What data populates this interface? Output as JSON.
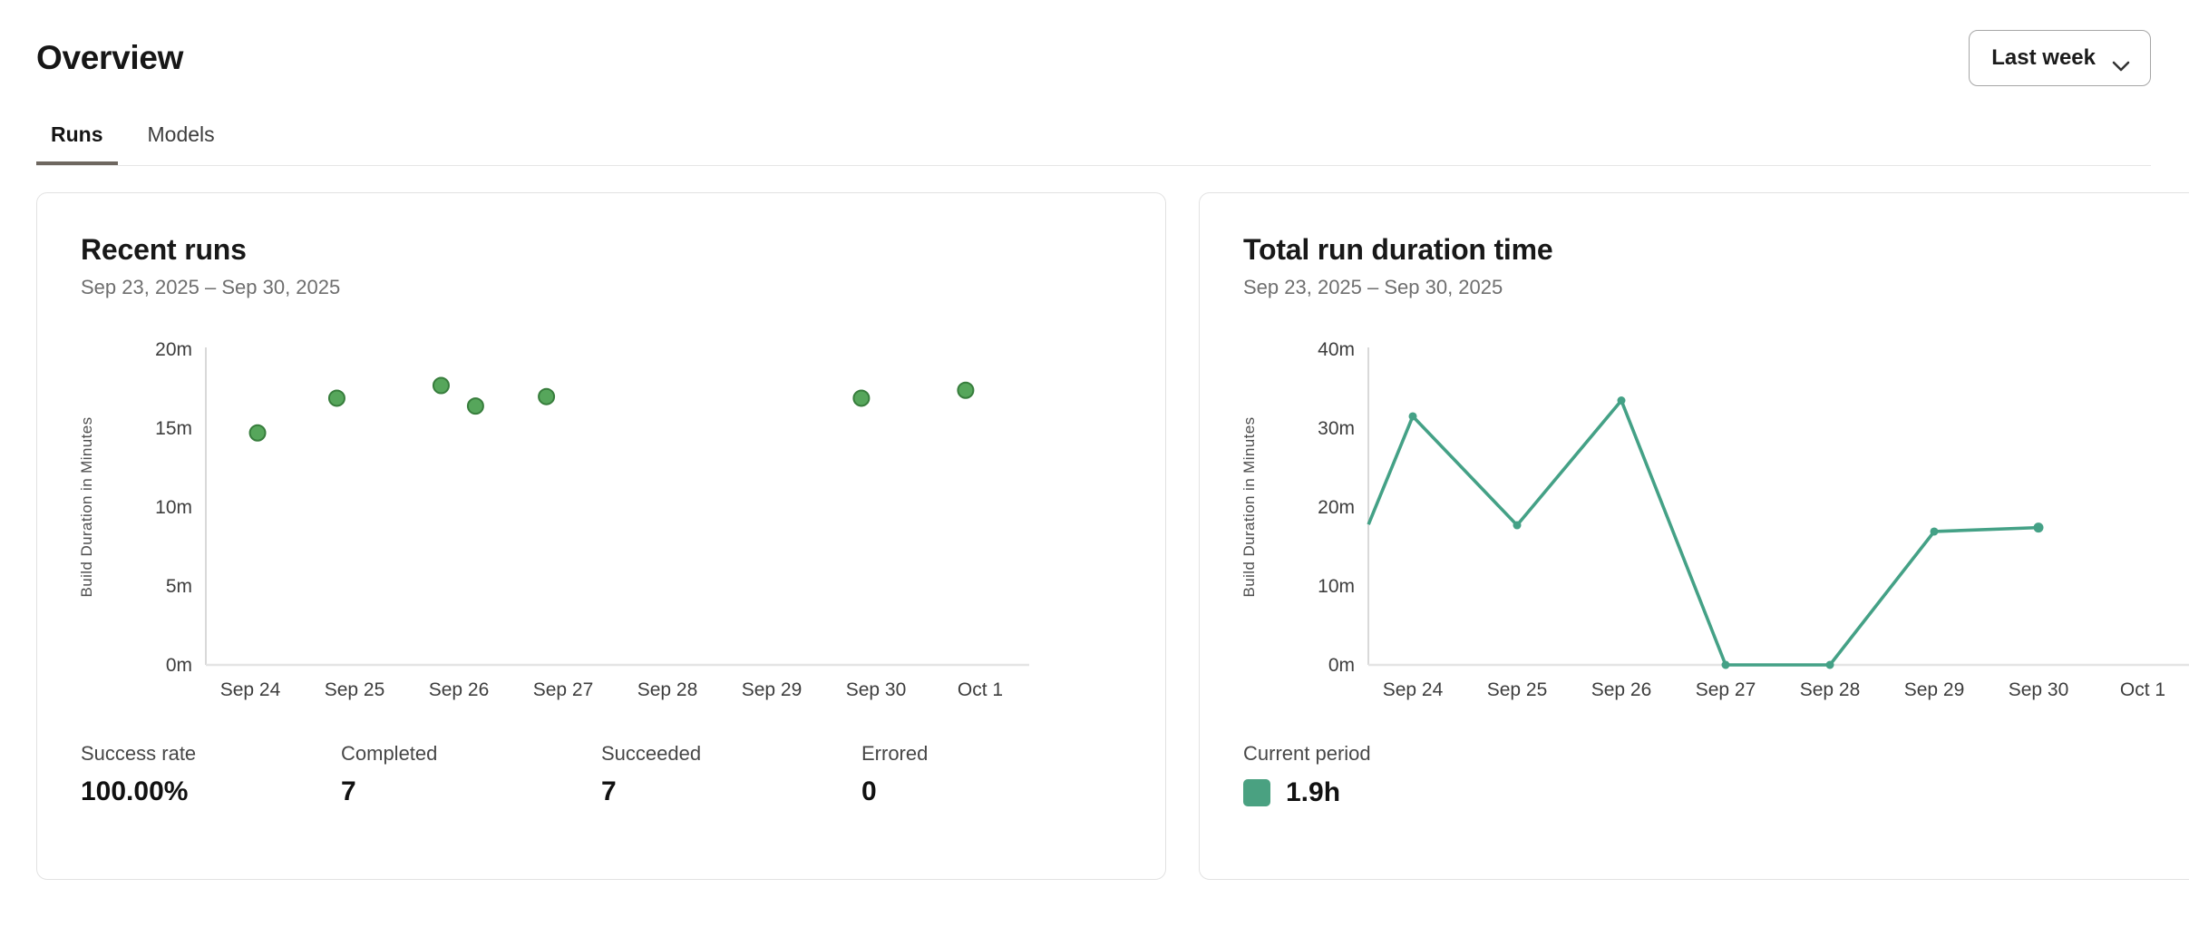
{
  "page": {
    "title": "Overview"
  },
  "period_selector": {
    "label": "Last week",
    "icon": "chevron-down-icon"
  },
  "tabs": [
    {
      "label": "Runs",
      "active": true
    },
    {
      "label": "Models",
      "active": false
    }
  ],
  "cards": {
    "recent_runs": {
      "title": "Recent runs",
      "date_range": "Sep 23, 2025 – Sep 30, 2025",
      "stats": [
        {
          "label": "Success rate",
          "value": "100.00%"
        },
        {
          "label": "Completed",
          "value": "7"
        },
        {
          "label": "Succeeded",
          "value": "7"
        },
        {
          "label": "Errored",
          "value": "0"
        }
      ]
    },
    "total_run_duration": {
      "title": "Total run duration time",
      "date_range": "Sep 23, 2025 – Sep 30, 2025",
      "legend": {
        "label": "Current period",
        "value": "1.9h",
        "swatch_color": "#4aa181"
      }
    }
  },
  "chart_data": [
    {
      "id": "recent-runs",
      "type": "scatter",
      "title": "Recent runs",
      "ylabel": "Build Duration in Minutes",
      "ylim": [
        0,
        20
      ],
      "y_ticks": [
        {
          "value": 0,
          "label": "0m"
        },
        {
          "value": 5,
          "label": "5m"
        },
        {
          "value": 10,
          "label": "10m"
        },
        {
          "value": 15,
          "label": "15m"
        },
        {
          "value": 20,
          "label": "20m"
        }
      ],
      "x_ticks": [
        {
          "value": 1,
          "label": "Sep 24"
        },
        {
          "value": 2,
          "label": "Sep 25"
        },
        {
          "value": 3,
          "label": "Sep 26"
        },
        {
          "value": 4,
          "label": "Sep 27"
        },
        {
          "value": 5,
          "label": "Sep 28"
        },
        {
          "value": 6,
          "label": "Sep 29"
        },
        {
          "value": 7,
          "label": "Sep 30"
        },
        {
          "value": 8,
          "label": "Oct 1"
        }
      ],
      "x_unit": "days (tick value 1 = Sep 24)",
      "points": [
        {
          "x": 1.07,
          "y": 14.7
        },
        {
          "x": 1.83,
          "y": 16.9
        },
        {
          "x": 2.83,
          "y": 17.7
        },
        {
          "x": 3.16,
          "y": 16.4
        },
        {
          "x": 3.84,
          "y": 17.0
        },
        {
          "x": 6.86,
          "y": 16.9
        },
        {
          "x": 7.86,
          "y": 17.4
        }
      ],
      "point_fill": "#56a65b",
      "point_stroke": "#377d3c"
    },
    {
      "id": "total-run-duration",
      "type": "line",
      "title": "Total run duration time",
      "ylabel": "Build Duration in Minutes",
      "ylim": [
        0,
        40
      ],
      "y_ticks": [
        {
          "value": 0,
          "label": "0m"
        },
        {
          "value": 10,
          "label": "10m"
        },
        {
          "value": 20,
          "label": "20m"
        },
        {
          "value": 30,
          "label": "30m"
        },
        {
          "value": 40,
          "label": "40m"
        }
      ],
      "x_ticks": [
        {
          "value": 1,
          "label": "Sep 24"
        },
        {
          "value": 2,
          "label": "Sep 25"
        },
        {
          "value": 3,
          "label": "Sep 26"
        },
        {
          "value": 4,
          "label": "Sep 27"
        },
        {
          "value": 5,
          "label": "Sep 28"
        },
        {
          "value": 6,
          "label": "Sep 29"
        },
        {
          "value": 7,
          "label": "Sep 30"
        },
        {
          "value": 8,
          "label": "Oct 1"
        }
      ],
      "x_unit": "days (tick value 1 = Sep 24)",
      "points": [
        {
          "x": 0.575,
          "y": 17.8,
          "clipped_at_axis": true
        },
        {
          "x": 1,
          "y": 31.5
        },
        {
          "x": 2,
          "y": 17.7
        },
        {
          "x": 3,
          "y": 33.5
        },
        {
          "x": 4,
          "y": 0
        },
        {
          "x": 5,
          "y": 0
        },
        {
          "x": 6,
          "y": 16.9
        },
        {
          "x": 7,
          "y": 17.4
        }
      ],
      "line_color": "#44a186",
      "total": "1.9h"
    }
  ],
  "colors": {
    "axis_line": "#d9d9d9",
    "baseline": "#e4e4e4",
    "tick_label": "#3d3d3d",
    "axis_title": "#4f4f4f",
    "active_tab_underline": "#6e6760",
    "scatter_green": "#56a65b",
    "line_teal": "#44a186"
  }
}
